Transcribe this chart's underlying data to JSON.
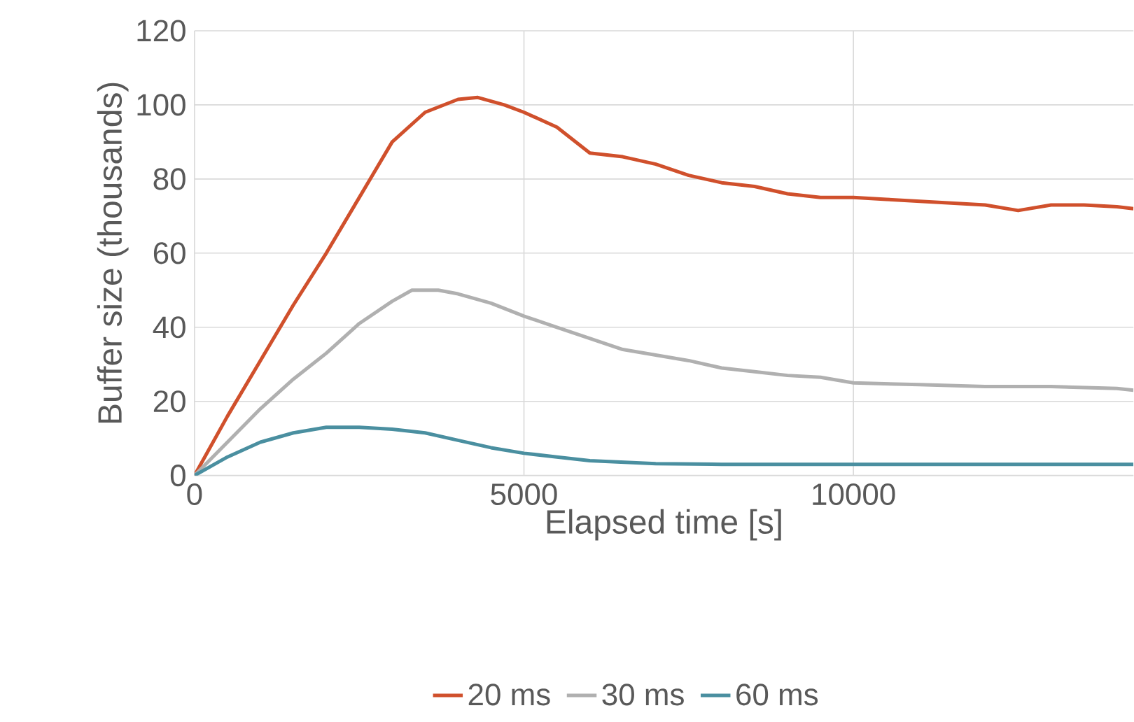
{
  "chart_data": {
    "type": "line",
    "xlabel": "Elapsed time [s]",
    "ylabel": "Buffer size (thousands)",
    "xlim": [
      0,
      14250
    ],
    "ylim": [
      0,
      120
    ],
    "xticks": [
      0,
      5000,
      10000
    ],
    "yticks": [
      0,
      20,
      40,
      60,
      80,
      100,
      120
    ],
    "grid": true,
    "legend": "bottom",
    "marker": "none",
    "line_style": "solid",
    "series": [
      {
        "name": "20 ms",
        "color": "#d0502c",
        "x": [
          0,
          500,
          1000,
          1500,
          2000,
          2500,
          3000,
          3500,
          4000,
          4300,
          4700,
          5000,
          5500,
          6000,
          6500,
          7000,
          7500,
          8000,
          8500,
          9000,
          9500,
          10000,
          10500,
          11000,
          11500,
          12000,
          12500,
          13000,
          13500,
          14000,
          14250
        ],
        "values": [
          0,
          16,
          31,
          46,
          60,
          75,
          90,
          98,
          101.5,
          102,
          100,
          98,
          94,
          87,
          86,
          84,
          81,
          79,
          78,
          76,
          75,
          75,
          74.5,
          74,
          73.5,
          73,
          71.5,
          73,
          73,
          72.5,
          72
        ]
      },
      {
        "name": "30 ms",
        "color": "#b0b0b0",
        "x": [
          0,
          500,
          1000,
          1500,
          2000,
          2500,
          3000,
          3300,
          3700,
          4000,
          4500,
          5000,
          5500,
          6000,
          6500,
          7000,
          7500,
          8000,
          8500,
          9000,
          9500,
          10000,
          11000,
          12000,
          13000,
          14000,
          14250
        ],
        "values": [
          0,
          9,
          18,
          26,
          33,
          41,
          47,
          50,
          50,
          49,
          46.5,
          43,
          40,
          37,
          34,
          32.5,
          31,
          29,
          28,
          27,
          26.5,
          25,
          24.5,
          24,
          24,
          23.5,
          23
        ]
      },
      {
        "name": "60 ms",
        "color": "#4a8fa0",
        "x": [
          0,
          500,
          1000,
          1500,
          2000,
          2500,
          3000,
          3500,
          4000,
          4500,
          5000,
          5500,
          6000,
          7000,
          8000,
          10000,
          12000,
          14000,
          14250
        ],
        "values": [
          0,
          5,
          9,
          11.5,
          13,
          13,
          12.5,
          11.5,
          9.5,
          7.5,
          6,
          5,
          4,
          3.2,
          3,
          3,
          3,
          3,
          3
        ]
      }
    ]
  }
}
